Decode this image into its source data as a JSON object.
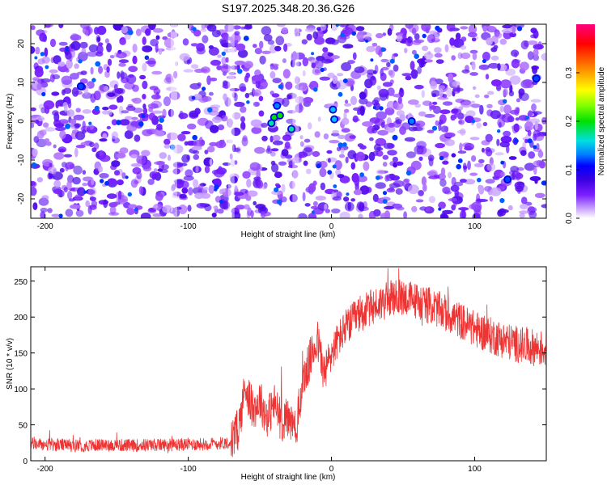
{
  "chart_data": [
    {
      "type": "heatmap",
      "title": "S197.2025.348.20.36.G26",
      "xlabel": "Height of straight line (km)",
      "ylabel": "Frequency (Hz)",
      "xlim": [
        -210,
        150
      ],
      "ylim": [
        -25,
        25
      ],
      "x_ticks": [
        -200,
        -100,
        0,
        100
      ],
      "y_ticks": [
        -20,
        -10,
        0,
        10,
        20
      ],
      "colorbar": {
        "label": "Normalized spectral amplitude",
        "range": [
          0,
          0.4
        ],
        "ticks": [
          0.0,
          0.1,
          0.2,
          0.3
        ],
        "colors": [
          "#ffffff",
          "#c9a3ff",
          "#7a1fff",
          "#3a00e0",
          "#0000ff",
          "#0080ff",
          "#00e0e0",
          "#00e000",
          "#80ff00",
          "#ffff00",
          "#ff8000",
          "#ff0000",
          "#ff0080"
        ]
      },
      "background_level": 0.05,
      "hotspots": [
        {
          "x": -40,
          "y": 1,
          "value": 0.2
        },
        {
          "x": -36,
          "y": 1.5,
          "value": 0.18
        },
        {
          "x": -42,
          "y": -0.5,
          "value": 0.16
        },
        {
          "x": -28,
          "y": -2,
          "value": 0.14
        },
        {
          "x": 1,
          "y": 3,
          "value": 0.13
        },
        {
          "x": 2,
          "y": 0.5,
          "value": 0.12
        },
        {
          "x": -38,
          "y": 4,
          "value": 0.1
        },
        {
          "x": 56,
          "y": 0,
          "value": 0.09
        },
        {
          "x": -175,
          "y": 9,
          "value": 0.08
        },
        {
          "x": 143,
          "y": 11,
          "value": 0.08
        },
        {
          "x": 123,
          "y": -15,
          "value": 0.07
        }
      ]
    },
    {
      "type": "line",
      "xlabel": "Height of straight line (km)",
      "ylabel": "SNR (10 * v/v)",
      "xlim": [
        -210,
        150
      ],
      "ylim": [
        0,
        270
      ],
      "x_ticks": [
        -200,
        -100,
        0,
        100
      ],
      "y_ticks": [
        0,
        50,
        100,
        150,
        200,
        250
      ],
      "color": "#ee3333",
      "series": [
        {
          "x": [
            -210,
            -200,
            -190,
            -180,
            -170,
            -160,
            -150,
            -140,
            -130,
            -120,
            -110,
            -100,
            -90,
            -80,
            -70,
            -65,
            -60,
            -55,
            -50,
            -45,
            -40,
            -35,
            -30,
            -25,
            -20,
            -15,
            -10,
            -5,
            0,
            5,
            10,
            20,
            30,
            40,
            50,
            60,
            70,
            80,
            90,
            100,
            110,
            120,
            130,
            140,
            150
          ],
          "y": [
            24,
            22,
            22,
            21,
            21,
            22,
            22,
            21,
            22,
            22,
            22,
            23,
            23,
            24,
            26,
            45,
            105,
            70,
            85,
            60,
            80,
            55,
            60,
            40,
            110,
            140,
            170,
            120,
            150,
            170,
            185,
            205,
            215,
            225,
            228,
            222,
            215,
            205,
            195,
            183,
            175,
            168,
            162,
            158,
            155
          ]
        }
      ]
    }
  ]
}
